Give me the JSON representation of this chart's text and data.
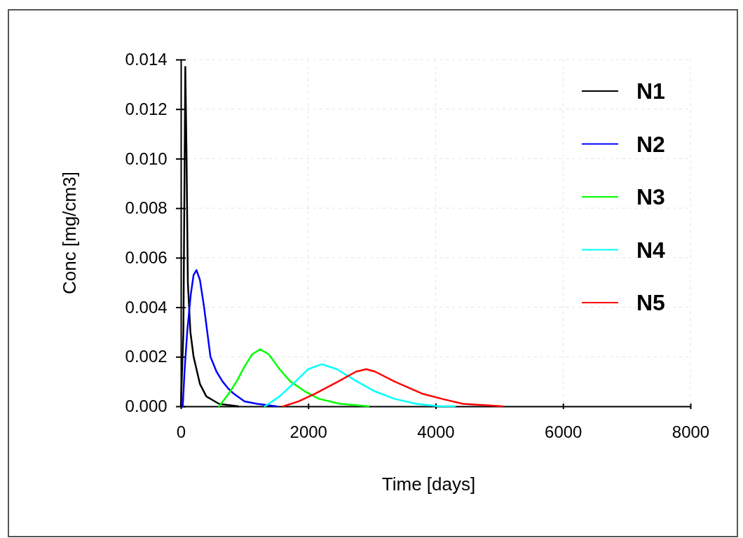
{
  "chart_data": {
    "type": "line",
    "xlabel": "Time [days]",
    "ylabel": "Conc [mg/cm3]",
    "xlim": [
      0,
      8000
    ],
    "xticks": [
      0,
      2000,
      4000,
      6000,
      8000
    ],
    "ylim": [
      0,
      0.014
    ],
    "yticks": [
      {
        "value": 0,
        "label": "0.000"
      },
      {
        "value": 0.002,
        "label": "0.002"
      },
      {
        "value": 0.004,
        "label": "0.004"
      },
      {
        "value": 0.006,
        "label": "0.006"
      },
      {
        "value": 0.008,
        "label": "0.008"
      },
      {
        "value": 0.01,
        "label": "0.010"
      },
      {
        "value": 0.012,
        "label": "0.012"
      },
      {
        "value": 0.014,
        "label": "0.014"
      }
    ],
    "grid": true,
    "legend": "top right",
    "marker": "none",
    "line_style": "solid",
    "series": [
      {
        "name": "N1",
        "color": "#000000",
        "x": [
          0,
          40,
          70,
          90,
          110,
          150,
          200,
          300,
          400,
          600,
          900
        ],
        "values": [
          0,
          0.003,
          0.0137,
          0.01,
          0.005,
          0.003,
          0.002,
          0.0009,
          0.0004,
          0.0001,
          0
        ]
      },
      {
        "name": "N2",
        "color": "#0000ff",
        "x": [
          30,
          60,
          100,
          155,
          200,
          245,
          300,
          365,
          465,
          560,
          655,
          750,
          835,
          1000,
          1200,
          1500
        ],
        "values": [
          0,
          0.0015,
          0.003,
          0.0045,
          0.0053,
          0.0055,
          0.0051,
          0.004,
          0.002,
          0.0014,
          0.001,
          0.0007,
          0.0005,
          0.0002,
          0.0001,
          0
        ]
      },
      {
        "name": "N3",
        "color": "#00ff00",
        "x": [
          600,
          750,
          875,
          1000,
          1120,
          1245,
          1380,
          1550,
          1720,
          1950,
          2170,
          2500,
          2950
        ],
        "values": [
          0,
          0.0005,
          0.001,
          0.0016,
          0.0021,
          0.0023,
          0.0021,
          0.0015,
          0.001,
          0.0006,
          0.0003,
          0.0001,
          0
        ]
      },
      {
        "name": "N4",
        "color": "#00ffff",
        "x": [
          1320,
          1550,
          1800,
          2000,
          2210,
          2450,
          2765,
          3050,
          3355,
          3700,
          4055,
          4300
        ],
        "values": [
          0,
          0.0004,
          0.001,
          0.0015,
          0.0017,
          0.0015,
          0.001,
          0.0006,
          0.0003,
          0.0001,
          0,
          0
        ]
      },
      {
        "name": "N5",
        "color": "#ff0000",
        "x": [
          1610,
          1850,
          2100,
          2470,
          2750,
          2910,
          3050,
          3355,
          3800,
          4100,
          4430,
          5050
        ],
        "values": [
          0,
          0.0002,
          0.0005,
          0.001,
          0.0014,
          0.0015,
          0.0014,
          0.001,
          0.0005,
          0.0003,
          0.0001,
          0
        ]
      }
    ]
  }
}
